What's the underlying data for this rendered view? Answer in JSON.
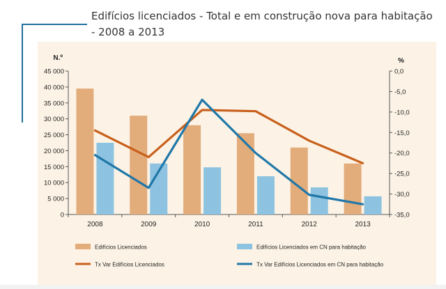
{
  "title": "Edifícios licenciados - Total e em construção nova para habitação - 2008 a 2013",
  "colors": {
    "bars_total": "#e3ac7b",
    "bars_cn": "#8dc3e0",
    "line_total": "#c8601c",
    "line_cn": "#1f77a8",
    "panel": "#fcf3e6",
    "accent": "#1f6f9a"
  },
  "chart_data": {
    "type": "bar+line",
    "categories": [
      "2008",
      "2009",
      "2010",
      "2011",
      "2012",
      "2013"
    ],
    "y_left": {
      "label": "N.º",
      "ylim": [
        0,
        45000
      ],
      "ticks": [
        "0",
        "5 000",
        "10 000",
        "15 000",
        "20 000",
        "25 000",
        "30 000",
        "35 000",
        "40 000",
        "45 000"
      ]
    },
    "y_right": {
      "label": "%",
      "ylim": [
        -35,
        0
      ],
      "ticks": [
        "0,0",
        "-5,0",
        "-10,0",
        "-15,0",
        "-20,0",
        "-25,0",
        "-30,0",
        "-35,0"
      ]
    },
    "series": [
      {
        "name": "Edifícios Licenciados",
        "kind": "bar",
        "axis": "left",
        "values": [
          39500,
          31000,
          28000,
          25500,
          21000,
          16000
        ]
      },
      {
        "name": "Edifícios Licenciados  em CN para habitação",
        "kind": "bar",
        "axis": "left",
        "values": [
          22500,
          16000,
          14800,
          12000,
          8500,
          5700
        ]
      },
      {
        "name": "Tx Var Edifícios Licenciados",
        "kind": "line",
        "axis": "right",
        "values": [
          -14.5,
          -21.0,
          -9.5,
          -9.8,
          -17.0,
          -22.5
        ]
      },
      {
        "name": "Tx Var Edifícios Licenciados  em CN para habitação",
        "kind": "line",
        "axis": "right",
        "values": [
          -20.5,
          -28.5,
          -7.0,
          -20.0,
          -30.2,
          -32.5
        ]
      }
    ]
  }
}
